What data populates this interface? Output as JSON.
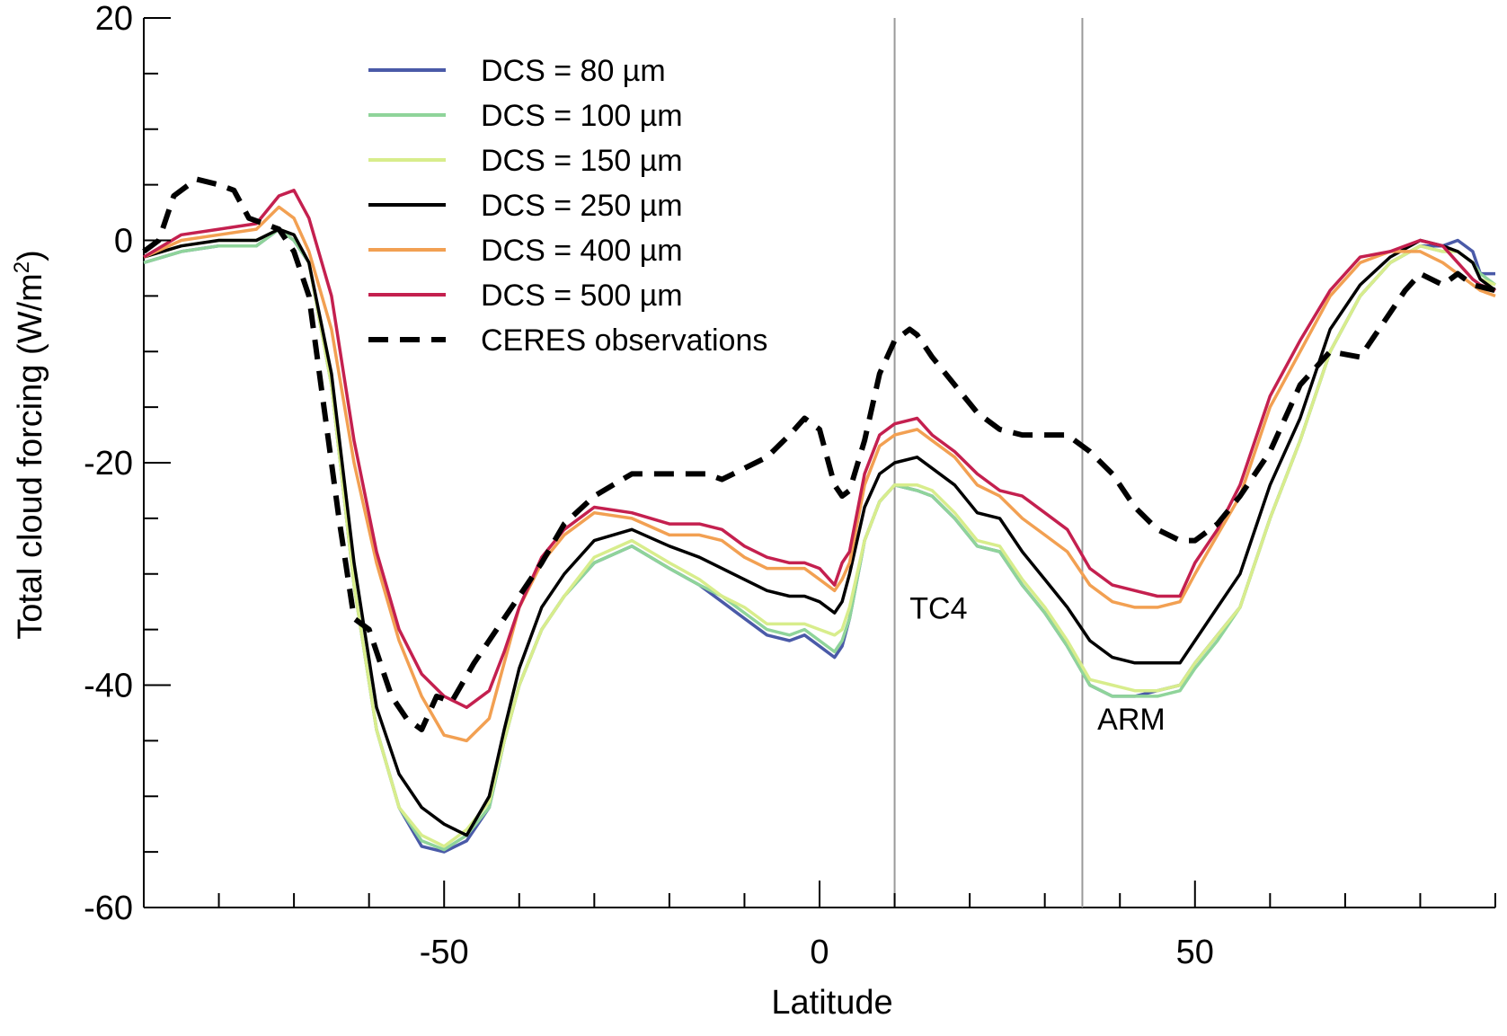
{
  "chart_data": {
    "type": "line",
    "xlabel": "Latitude",
    "ylabel": "Total cloud forcing (W/m",
    "ylabel_superscript": "2",
    "ylabel_close": ")",
    "xlim": [
      -90,
      90
    ],
    "ylim": [
      -60,
      20
    ],
    "xticks": [
      -50,
      0,
      50
    ],
    "yticks": [
      20,
      0,
      -20,
      -40,
      -60
    ],
    "grid": false,
    "legend_position": "top-left",
    "vlines": [
      {
        "x": 10,
        "label": "TC4",
        "label_x": 12,
        "label_y": -34
      },
      {
        "x": 35,
        "label": "ARM",
        "label_x": 37,
        "label_y": -44
      }
    ],
    "series": [
      {
        "name": "DCS = 80 µm",
        "color": "#4a5aa8",
        "style": "solid",
        "x": [
          -90,
          -85,
          -80,
          -75,
          -72,
          -70,
          -68,
          -65,
          -62,
          -59,
          -56,
          -53,
          -50,
          -47,
          -44,
          -42,
          -40,
          -37,
          -34,
          -30,
          -25,
          -20,
          -16,
          -13,
          -10,
          -7,
          -4,
          -2,
          0,
          2,
          3,
          4,
          6,
          8,
          10,
          13,
          15,
          18,
          21,
          24,
          27,
          30,
          33,
          36,
          39,
          42,
          45,
          48,
          50,
          53,
          56,
          60,
          64,
          68,
          72,
          76,
          80,
          83,
          85,
          87,
          88,
          90
        ],
        "y": [
          -2,
          -1,
          -0.5,
          -0.5,
          1,
          0,
          -2,
          -13,
          -31,
          -44,
          -51,
          -54.5,
          -55,
          -54,
          -51,
          -45,
          -40,
          -35,
          -32,
          -29,
          -27.5,
          -29.5,
          -31,
          -32.5,
          -34,
          -35.5,
          -36,
          -35.5,
          -36.5,
          -37.5,
          -36.5,
          -34,
          -27,
          -23.5,
          -22,
          -22.5,
          -23,
          -25,
          -27.5,
          -28,
          -31,
          -33.5,
          -36.5,
          -40,
          -41,
          -41,
          -40.5,
          -40,
          -38,
          -35.5,
          -33,
          -25,
          -18,
          -10,
          -5,
          -2,
          -0.5,
          -0.5,
          0,
          -1,
          -3,
          -3
        ]
      },
      {
        "name": "DCS = 100 µm",
        "color": "#8fd49a",
        "style": "solid",
        "x": [
          -90,
          -85,
          -80,
          -75,
          -72,
          -70,
          -68,
          -65,
          -62,
          -59,
          -56,
          -53,
          -50,
          -47,
          -44,
          -42,
          -40,
          -37,
          -34,
          -30,
          -25,
          -20,
          -16,
          -13,
          -10,
          -7,
          -4,
          -2,
          0,
          2,
          3,
          4,
          6,
          8,
          10,
          13,
          15,
          18,
          21,
          24,
          27,
          30,
          33,
          36,
          39,
          42,
          45,
          48,
          50,
          53,
          56,
          60,
          64,
          68,
          72,
          76,
          80,
          83,
          85,
          87,
          88,
          90
        ],
        "y": [
          -2,
          -1,
          -0.5,
          -0.5,
          1,
          0,
          -2,
          -13,
          -31,
          -44,
          -51,
          -54,
          -54.8,
          -53.5,
          -51,
          -45,
          -40,
          -35,
          -32,
          -29,
          -27.5,
          -29.5,
          -31,
          -32,
          -33.5,
          -35,
          -35.5,
          -35,
          -36,
          -37,
          -36,
          -34,
          -27,
          -23.5,
          -22,
          -22.5,
          -23,
          -25,
          -27.5,
          -28,
          -31,
          -33.5,
          -36.5,
          -40,
          -41,
          -41,
          -41,
          -40.5,
          -38.5,
          -36,
          -33,
          -25,
          -18,
          -10,
          -5,
          -2,
          -0.5,
          -1,
          -1,
          -2,
          -3,
          -4
        ]
      },
      {
        "name": "DCS = 150 µm",
        "color": "#d8ed8c",
        "style": "solid",
        "x": [
          -90,
          -85,
          -80,
          -75,
          -72,
          -70,
          -68,
          -65,
          -62,
          -59,
          -56,
          -53,
          -50,
          -47,
          -44,
          -42,
          -40,
          -37,
          -34,
          -30,
          -25,
          -20,
          -16,
          -13,
          -10,
          -7,
          -4,
          -2,
          0,
          2,
          3,
          4,
          6,
          8,
          10,
          13,
          15,
          18,
          21,
          24,
          27,
          30,
          33,
          36,
          39,
          42,
          45,
          48,
          50,
          53,
          56,
          60,
          64,
          68,
          72,
          76,
          80,
          83,
          85,
          87,
          88,
          90
        ],
        "y": [
          -1.5,
          -0.5,
          0,
          0,
          1,
          0.5,
          -2,
          -13,
          -31,
          -44,
          -51,
          -53.5,
          -54.5,
          -53,
          -50.5,
          -45,
          -40,
          -35,
          -32,
          -28.5,
          -27,
          -29,
          -30.5,
          -32,
          -33,
          -34.5,
          -34.5,
          -34.5,
          -35,
          -35.5,
          -35,
          -33,
          -27,
          -23.5,
          -22,
          -22,
          -22.5,
          -24.5,
          -27,
          -27.5,
          -30.5,
          -33,
          -36,
          -39.5,
          -40,
          -40.5,
          -40.5,
          -40,
          -38,
          -35.5,
          -33,
          -25,
          -18,
          -10,
          -5,
          -2,
          -0.5,
          -1,
          -1,
          -2,
          -3.5,
          -4
        ]
      },
      {
        "name": "DCS = 250 µm",
        "color": "#000000",
        "style": "solid",
        "x": [
          -90,
          -85,
          -80,
          -75,
          -72,
          -70,
          -68,
          -65,
          -62,
          -59,
          -56,
          -53,
          -50,
          -47,
          -44,
          -42,
          -40,
          -37,
          -34,
          -30,
          -25,
          -20,
          -16,
          -13,
          -10,
          -7,
          -4,
          -2,
          0,
          2,
          3,
          4,
          6,
          8,
          10,
          13,
          15,
          18,
          21,
          24,
          27,
          30,
          33,
          36,
          39,
          42,
          45,
          48,
          50,
          53,
          56,
          60,
          64,
          68,
          72,
          76,
          80,
          83,
          85,
          87,
          88,
          90
        ],
        "y": [
          -1.5,
          -0.5,
          0,
          0,
          1,
          0.5,
          -2,
          -12,
          -29,
          -42,
          -48,
          -51,
          -52.5,
          -53.5,
          -50,
          -44,
          -38.5,
          -33,
          -30,
          -27,
          -26,
          -27.5,
          -28.5,
          -29.5,
          -30.5,
          -31.5,
          -32,
          -32,
          -32.5,
          -33.5,
          -32.5,
          -30,
          -24,
          -21,
          -20,
          -19.5,
          -20.5,
          -22,
          -24.5,
          -25,
          -28,
          -30.5,
          -33,
          -36,
          -37.5,
          -38,
          -38,
          -38,
          -36,
          -33,
          -30,
          -22,
          -16,
          -8,
          -4,
          -1.5,
          0,
          -0.5,
          -1,
          -2,
          -3.5,
          -4.5
        ]
      },
      {
        "name": "DCS = 400 µm",
        "color": "#f2a052",
        "style": "solid",
        "x": [
          -90,
          -85,
          -80,
          -75,
          -72,
          -70,
          -68,
          -65,
          -62,
          -59,
          -56,
          -53,
          -50,
          -47,
          -44,
          -42,
          -40,
          -37,
          -34,
          -30,
          -25,
          -20,
          -16,
          -13,
          -10,
          -7,
          -4,
          -2,
          0,
          2,
          3,
          4,
          6,
          8,
          10,
          13,
          15,
          18,
          21,
          24,
          27,
          30,
          33,
          36,
          39,
          42,
          45,
          48,
          50,
          53,
          56,
          60,
          64,
          68,
          72,
          76,
          80,
          83,
          85,
          87,
          88,
          90
        ],
        "y": [
          -1.5,
          0,
          0.5,
          1,
          3,
          2,
          -1,
          -8,
          -20,
          -29,
          -36,
          -41,
          -44.5,
          -45,
          -43,
          -38,
          -33,
          -29,
          -26.5,
          -24.5,
          -25,
          -26.5,
          -26.5,
          -27,
          -28.5,
          -29.5,
          -29.5,
          -29.5,
          -30.5,
          -31.5,
          -30.5,
          -29,
          -22,
          -18.5,
          -17.5,
          -17,
          -18,
          -19.5,
          -22,
          -23,
          -25,
          -26.5,
          -28,
          -31,
          -32.5,
          -33,
          -33,
          -32.5,
          -30,
          -26.5,
          -23,
          -15,
          -10,
          -5,
          -2,
          -1,
          -1,
          -2,
          -3,
          -4,
          -4.5,
          -5
        ]
      },
      {
        "name": "DCS = 500 µm",
        "color": "#c4204f",
        "style": "solid",
        "x": [
          -90,
          -85,
          -80,
          -75,
          -72,
          -70,
          -68,
          -65,
          -62,
          -59,
          -56,
          -53,
          -50,
          -47,
          -44,
          -42,
          -40,
          -37,
          -34,
          -30,
          -25,
          -20,
          -16,
          -13,
          -10,
          -7,
          -4,
          -2,
          0,
          2,
          3,
          4,
          6,
          8,
          10,
          13,
          15,
          18,
          21,
          24,
          27,
          30,
          33,
          36,
          39,
          42,
          45,
          48,
          50,
          53,
          56,
          60,
          64,
          68,
          72,
          76,
          80,
          83,
          85,
          87,
          88,
          90
        ],
        "y": [
          -1.5,
          0.5,
          1,
          1.5,
          4,
          4.5,
          2,
          -5,
          -18,
          -28,
          -35,
          -39,
          -41,
          -42,
          -40.5,
          -37,
          -33,
          -28.5,
          -26,
          -24,
          -24.5,
          -25.5,
          -25.5,
          -26,
          -27.5,
          -28.5,
          -29,
          -29,
          -29.5,
          -31,
          -29,
          -28,
          -21,
          -17.5,
          -16.5,
          -16,
          -17.5,
          -19,
          -21,
          -22.5,
          -23,
          -24.5,
          -26,
          -29.5,
          -31,
          -31.5,
          -32,
          -32,
          -29,
          -26,
          -22,
          -14,
          -9,
          -4.5,
          -1.5,
          -1,
          0,
          -0.5,
          -2,
          -3.5,
          -4,
          -4.5
        ]
      },
      {
        "name": "CERES observations",
        "color": "#000000",
        "style": "dashed",
        "x": [
          -90,
          -88,
          -86,
          -83,
          -80,
          -78,
          -76,
          -74,
          -72,
          -70,
          -68,
          -66,
          -64,
          -62,
          -60,
          -57,
          -55,
          -53,
          -51,
          -49,
          -46,
          -43,
          -40,
          -37,
          -34,
          -30,
          -25,
          -20,
          -15,
          -13,
          -10,
          -7,
          -4,
          -2,
          0,
          2,
          3,
          4,
          6,
          8,
          10,
          12,
          13,
          15,
          18,
          21,
          24,
          27,
          30,
          33,
          36,
          39,
          42,
          45,
          48,
          50,
          53,
          56,
          60,
          64,
          68,
          72,
          75,
          78,
          80,
          83,
          85,
          87,
          90
        ],
        "y": [
          -1,
          0,
          4,
          5.5,
          5,
          4.5,
          2,
          1.5,
          1,
          -1,
          -5,
          -15,
          -25,
          -34,
          -35,
          -41,
          -43,
          -44,
          -41,
          -41.5,
          -38,
          -35,
          -32,
          -29,
          -25.5,
          -23,
          -21,
          -21,
          -21,
          -21.5,
          -20.5,
          -19.5,
          -17.5,
          -16,
          -17,
          -22,
          -23,
          -22.5,
          -18,
          -12,
          -9,
          -8,
          -8.5,
          -10.5,
          -13,
          -15.5,
          -17,
          -17.5,
          -17.5,
          -17.5,
          -19,
          -21,
          -24,
          -26,
          -27,
          -27,
          -25.5,
          -23,
          -19,
          -13,
          -10,
          -10.5,
          -7.5,
          -4.5,
          -3,
          -4,
          -3,
          -4,
          -4.5
        ]
      }
    ]
  }
}
